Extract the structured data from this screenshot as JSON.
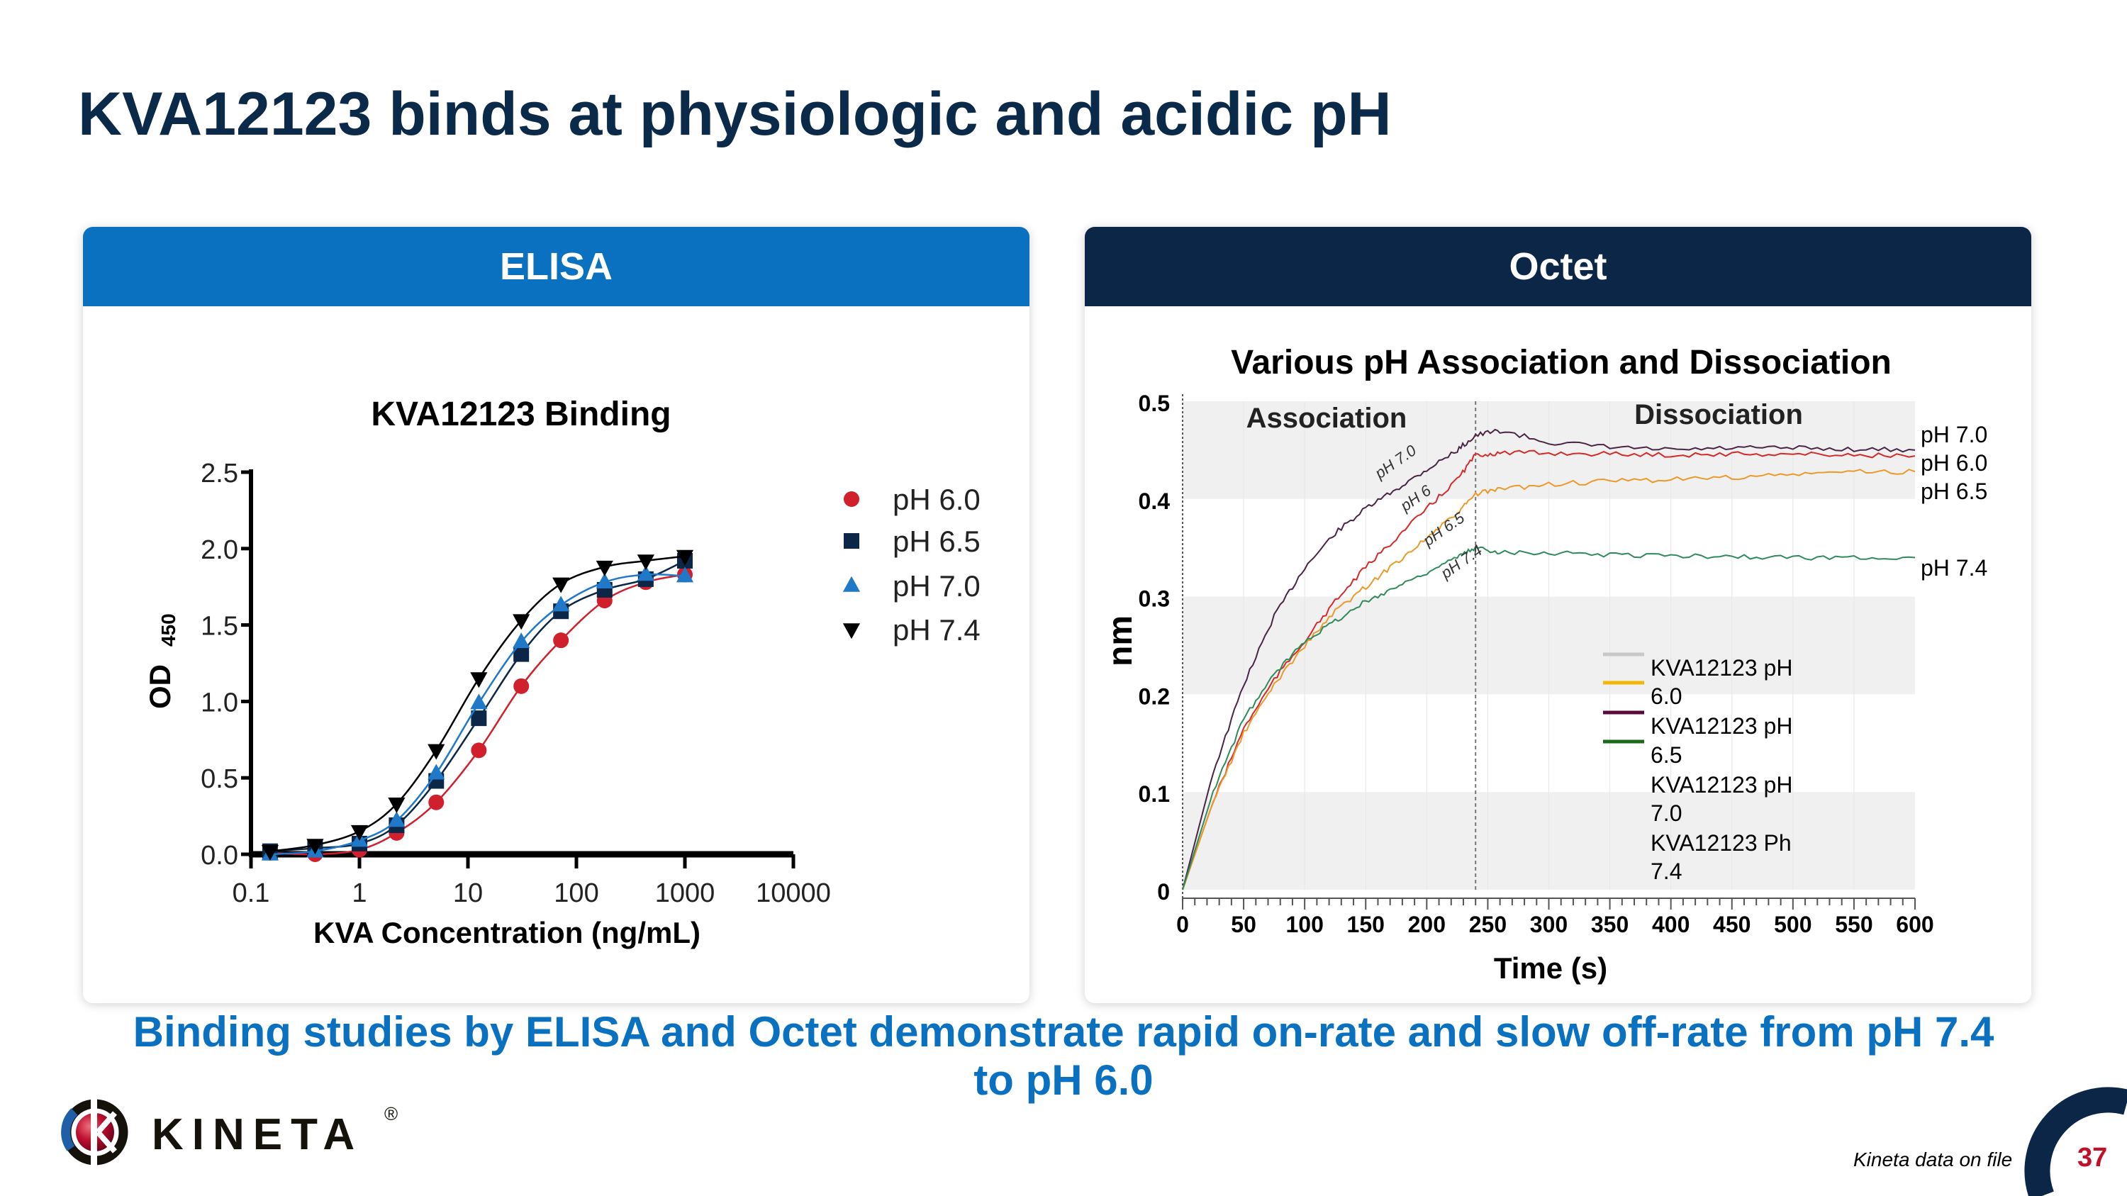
{
  "title": "KVA12123 binds at physiologic and acidic pH",
  "panels": {
    "elisa": "ELISA",
    "octet": "Octet"
  },
  "conclusion": {
    "line1": "Binding studies by ELISA and Octet demonstrate rapid on-rate and slow off-rate from pH 7.4",
    "line2": "to pH 6.0"
  },
  "footer": {
    "source": "Kineta data on file",
    "page_number": "37",
    "logo_text": "KINETA",
    "logo_reg": "®"
  },
  "colors": {
    "title": "#0b2a4a",
    "elisa_header": "#0a70c0",
    "octet_header": "#0b2646",
    "conclusion": "#0a70c0",
    "page_number": "#c0102a"
  },
  "chart_data": [
    {
      "type": "scatter",
      "title": "KVA12123 Binding",
      "xlabel": "KVA Concentration (ng/mL)",
      "ylabel": "OD",
      "ylabel_sub": "450",
      "xscale": "log",
      "xlim": [
        0.1,
        10000
      ],
      "ylim": [
        0,
        2.5
      ],
      "xticks": [
        "0.1",
        "1",
        "10",
        "100",
        "1000",
        "10000"
      ],
      "yticks": [
        "0.0",
        "0.5",
        "1.0",
        "1.5",
        "2.0",
        "2.5"
      ],
      "legend_position": "right",
      "x": [
        0.15,
        0.39,
        1,
        2.2,
        5.1,
        12.6,
        31,
        72,
        182,
        436,
        1000
      ],
      "series": [
        {
          "name": "pH 6.0",
          "marker": "circle",
          "color": "#d0202e",
          "values": [
            0.01,
            0.0,
            0.03,
            0.14,
            0.34,
            0.68,
            1.1,
            1.4,
            1.66,
            1.78,
            1.83
          ]
        },
        {
          "name": "pH 6.5",
          "marker": "square",
          "color": "#0b2646",
          "values": [
            0.02,
            0.04,
            0.07,
            0.19,
            0.48,
            0.89,
            1.31,
            1.59,
            1.73,
            1.8,
            1.92
          ]
        },
        {
          "name": "pH 7.0",
          "marker": "triangle-up",
          "color": "#1f78c8",
          "values": [
            0.0,
            0.02,
            0.09,
            0.22,
            0.53,
            0.99,
            1.39,
            1.63,
            1.78,
            1.83,
            1.82
          ]
        },
        {
          "name": "pH 7.4",
          "marker": "triangle-down",
          "color": "#000000",
          "values": [
            0.02,
            0.06,
            0.15,
            0.33,
            0.68,
            1.15,
            1.53,
            1.77,
            1.88,
            1.92,
            1.95
          ]
        }
      ]
    },
    {
      "type": "line",
      "title": "Various pH Association and Dissociation",
      "xlabel": "Time (s)",
      "ylabel": "nm",
      "xlim": [
        0,
        600
      ],
      "ylim": [
        0,
        0.5
      ],
      "xticks": [
        "0",
        "50",
        "100",
        "150",
        "200",
        "250",
        "300",
        "350",
        "400",
        "450",
        "500",
        "550",
        "600"
      ],
      "yticks": [
        "0",
        "0.1",
        "0.2",
        "0.3",
        "0.4",
        "0.5"
      ],
      "phase_labels": [
        "Association",
        "Dissociation"
      ],
      "phase_boundary": 240,
      "x": [
        0,
        25,
        50,
        75,
        100,
        125,
        150,
        175,
        200,
        225,
        240,
        260,
        300,
        350,
        400,
        450,
        500,
        550,
        600
      ],
      "series": [
        {
          "name": "pH 7.0",
          "inline_label": "pH 7.0",
          "color": "#4a2445",
          "values": [
            0,
            0.12,
            0.21,
            0.28,
            0.33,
            0.365,
            0.39,
            0.41,
            0.43,
            0.45,
            0.465,
            0.47,
            0.458,
            0.453,
            0.45,
            0.452,
            0.452,
            0.451,
            0.45
          ]
        },
        {
          "name": "pH 6.0",
          "inline_label": "pH 6",
          "color": "#d42a2a",
          "values": [
            0,
            0.09,
            0.165,
            0.215,
            0.255,
            0.295,
            0.33,
            0.36,
            0.39,
            0.42,
            0.445,
            0.447,
            0.447,
            0.446,
            0.445,
            0.446,
            0.446,
            0.445,
            0.444
          ]
        },
        {
          "name": "pH 6.5",
          "inline_label": "pH 6.5",
          "color": "#eb9a2a",
          "values": [
            0,
            0.09,
            0.16,
            0.21,
            0.25,
            0.285,
            0.31,
            0.335,
            0.36,
            0.385,
            0.405,
            0.41,
            0.415,
            0.418,
            0.42,
            0.422,
            0.425,
            0.428,
            0.428
          ]
        },
        {
          "name": "pH 7.4",
          "inline_label": "pH 7.4",
          "color": "#2e8b5a",
          "values": [
            0,
            0.1,
            0.175,
            0.22,
            0.255,
            0.275,
            0.295,
            0.31,
            0.325,
            0.34,
            0.35,
            0.346,
            0.345,
            0.343,
            0.342,
            0.341,
            0.34,
            0.34,
            0.34
          ]
        }
      ],
      "legend": [
        {
          "label": "KVA12123 pH",
          "color": "#c8c8c8"
        },
        {
          "label": "6.0",
          "color": "#f2b705"
        },
        {
          "label": "KVA12123 pH",
          "color": "#5a0a3a"
        },
        {
          "label": "6.5",
          "color": "#1a6a1a"
        },
        {
          "label": "KVA12123 pH",
          "color": null
        },
        {
          "label": "7.0",
          "color": null
        },
        {
          "label": "KVA12123 Ph",
          "color": null
        },
        {
          "label": "7.4",
          "color": null
        }
      ]
    }
  ]
}
